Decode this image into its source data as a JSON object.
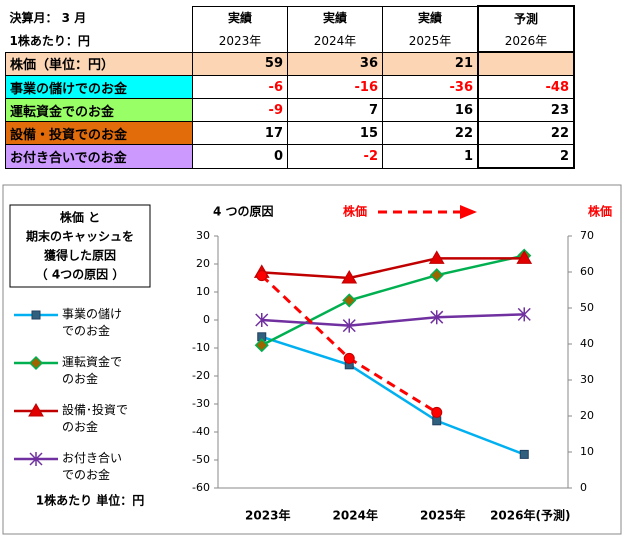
{
  "table": {
    "header_left": [
      "決算月： 3 月",
      "1株あたり：円"
    ],
    "columns": [
      {
        "status": "実績",
        "year": "2023年"
      },
      {
        "status": "実績",
        "year": "2024年"
      },
      {
        "status": "実績",
        "year": "2025年"
      },
      {
        "status": "予測",
        "year": "2026年"
      }
    ],
    "rows": [
      {
        "label": "株価（単位：円）",
        "color": "#fcd5b4",
        "values": [
          59,
          36,
          21,
          null
        ]
      },
      {
        "label": "事業の儲けでのお金",
        "color": "#00ffff",
        "values": [
          -6,
          -16,
          -36,
          -48
        ]
      },
      {
        "label": "運転資金でのお金",
        "color": "#99ff66",
        "values": [
          -9,
          7,
          16,
          23
        ]
      },
      {
        "label": "設備・投資でのお金",
        "color": "#e26b0a",
        "values": [
          17,
          15,
          22,
          22
        ]
      },
      {
        "label": "お付き合いでのお金",
        "color": "#cc99ff",
        "values": [
          0,
          -2,
          1,
          2
        ]
      }
    ]
  },
  "chart_data": {
    "type": "line",
    "title": [
      "株価 と",
      "期末のキャッシュを",
      "獲得した原因",
      "（ 4つの原因 ）"
    ],
    "annotations": [
      "4 つの原因",
      "株価",
      "株価",
      "1株あたり 単位：円"
    ],
    "categories": [
      "2023年",
      "2024年",
      "2025年",
      "2026年(予測)"
    ],
    "ylim": [
      -60,
      30
    ],
    "yticks": [
      -60,
      -50,
      -40,
      -30,
      -20,
      -10,
      0,
      10,
      20,
      30
    ],
    "y2lim": [
      0,
      70
    ],
    "y2ticks": [
      0,
      10,
      20,
      30,
      40,
      50,
      60,
      70
    ],
    "grid": false,
    "series": [
      {
        "name": "事業の儲けでのお金",
        "color": "#00b0f0",
        "marker": "square",
        "values": [
          -6,
          -16,
          -36,
          -48
        ]
      },
      {
        "name": "運転資金でのお金",
        "color": "#00b050",
        "marker": "diamond",
        "values": [
          -9,
          7,
          16,
          23
        ]
      },
      {
        "name": "設備･投資でのお金",
        "color": "#c00000",
        "marker": "triangle",
        "values": [
          17,
          15,
          22,
          22
        ]
      },
      {
        "name": "お付き合いでのお金",
        "color": "#7030a0",
        "marker": "star",
        "values": [
          0,
          -2,
          1,
          2
        ]
      },
      {
        "name": "株価",
        "color": "#ff0000",
        "marker": "circle",
        "dashed": true,
        "axis": "y2",
        "values": [
          59,
          36,
          21,
          null
        ]
      }
    ]
  }
}
